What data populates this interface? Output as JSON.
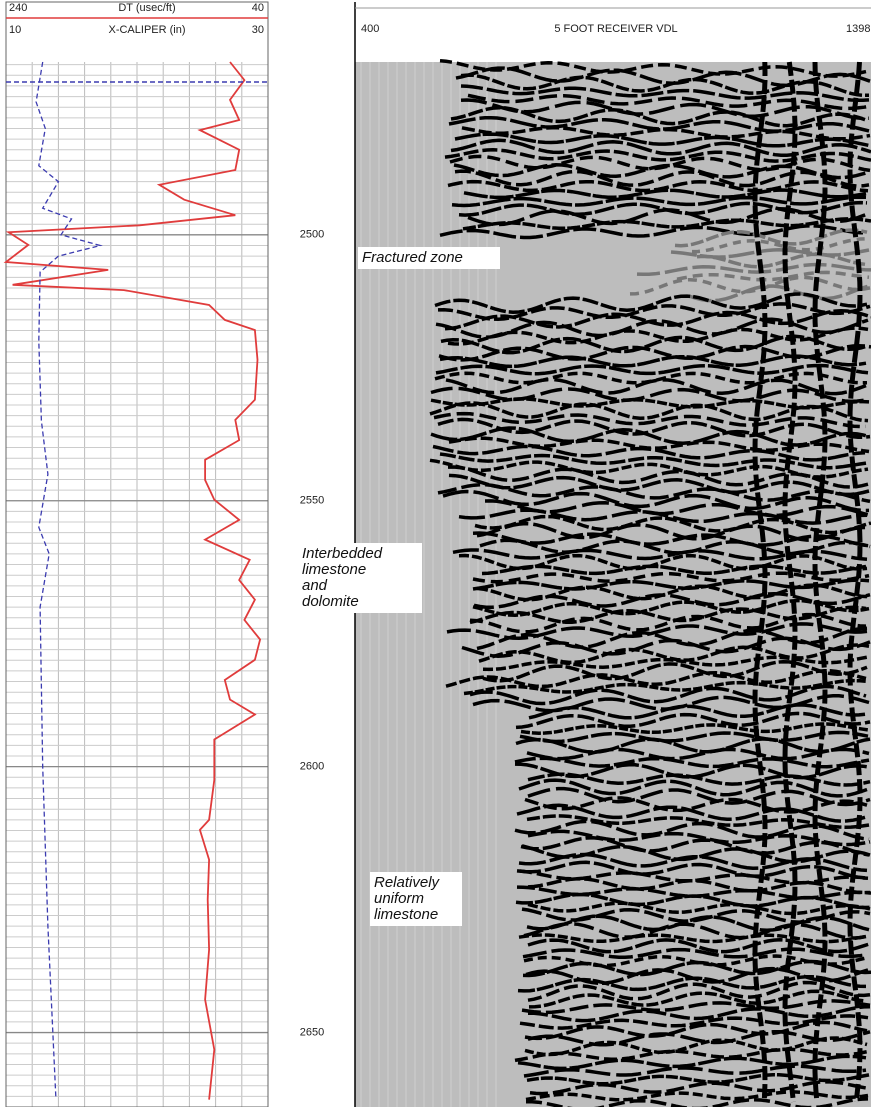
{
  "chart_data": {
    "type": "well-log",
    "ylim": [
      2467.5,
      2664
    ],
    "yticks": [
      2500,
      2550,
      2600,
      2650
    ],
    "grid": true,
    "series": [
      {
        "name": "DT (usec/ft)",
        "color": "#e03c3c",
        "xlim": [
          240,
          40
        ],
        "y": [
          2467.5,
          2470.9,
          2474.6,
          2478.4,
          2480.3,
          2484.0,
          2487.8,
          2490.6,
          2493.4,
          2496.3,
          2498.2,
          2499.5,
          2501.9,
          2505.1,
          2506.6,
          2509.4,
          2510.4,
          2513.2,
          2516.0,
          2517.9,
          2523.5,
          2531.0,
          2534.8,
          2538.6,
          2542.3,
          2546.1,
          2549.8,
          2553.6,
          2557.3,
          2561.1,
          2564.9,
          2568.6,
          2572.4,
          2576.1,
          2579.9,
          2583.7,
          2587.4,
          2590.2,
          2594.9,
          2602.5,
          2610.0,
          2611.9,
          2617.5,
          2625.0,
          2634.4,
          2643.8,
          2653.2,
          2662.6
        ],
        "values": [
          69,
          58,
          69,
          62,
          92,
          62,
          65,
          123,
          104,
          65,
          138,
          238,
          223,
          240,
          162,
          235,
          150,
          85,
          73,
          50,
          48,
          50,
          65,
          62,
          88,
          88,
          81,
          62,
          88,
          54,
          62,
          50,
          58,
          46,
          50,
          73,
          69,
          50,
          81,
          81,
          85,
          92,
          85,
          86,
          85,
          88,
          81,
          85
        ]
      },
      {
        "name": "X-CALIPER (in)",
        "color": "#3b3bb0",
        "xlim": [
          10,
          30
        ],
        "dashed": true,
        "y": [
          2467.5,
          2475,
          2480,
          2487,
          2490,
          2495,
          2497,
          2500,
          2502,
          2504,
          2507,
          2520,
          2535,
          2545,
          2555,
          2560,
          2570,
          2600,
          2630,
          2662
        ],
        "values": [
          12.8,
          12.3,
          13,
          12.5,
          14,
          12.8,
          15,
          14.2,
          17.2,
          14,
          12.6,
          12.5,
          12.7,
          13.2,
          12.5,
          13.3,
          12.6,
          12.8,
          13.2,
          13.8
        ]
      }
    ],
    "vdl": {
      "title": "5 FOOT RECEIVER VDL",
      "xlim": [
        400,
        1398
      ]
    },
    "annotations": [
      "Fractured zone",
      "Interbedded\nlimestone\nand\ndolomite",
      "Relatively\nuniform\nlimestone"
    ]
  }
}
